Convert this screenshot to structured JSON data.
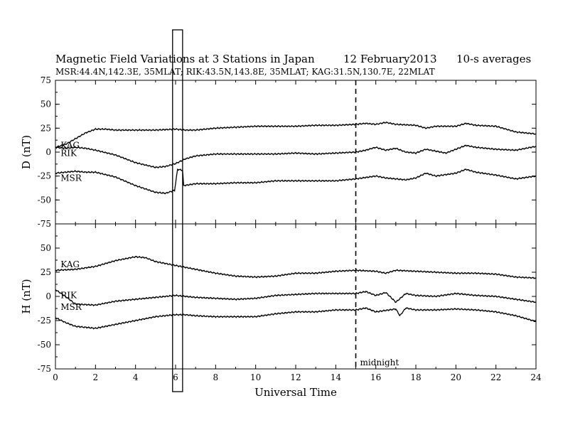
{
  "header": {
    "title": "Magnetic Field Variations at 3 Stations in Japan",
    "date": "12 February2013",
    "averaging": "10-s averages",
    "stations_line": "MSR:44.4N,142.3E, 35MLAT;  RIK:43.5N,143.8E, 35MLAT;  KAG:31.5N,130.7E, 22MLAT"
  },
  "chart_data": {
    "type": "line",
    "xlabel": "Universal Time",
    "xlim": [
      0,
      24
    ],
    "xticks": [
      0,
      2,
      4,
      6,
      8,
      10,
      12,
      14,
      16,
      18,
      20,
      22,
      24
    ],
    "midnight_line": {
      "x": 15,
      "label": "midnight"
    },
    "highlight_box": {
      "x_start": 5.85,
      "x_end": 6.35
    },
    "panels": [
      {
        "id": "D",
        "ylabel": "D (nT)",
        "ylim": [
          -75,
          75
        ],
        "yticks": [
          75,
          50,
          25,
          0,
          -25,
          -50,
          -75
        ],
        "series": [
          {
            "name": "KAG",
            "label_at": [
              0.15,
              4
            ],
            "points": [
              [
                0,
                5
              ],
              [
                0.5,
                8
              ],
              [
                1,
                14
              ],
              [
                1.5,
                20
              ],
              [
                2,
                24
              ],
              [
                2.5,
                24
              ],
              [
                3,
                23
              ],
              [
                4,
                23
              ],
              [
                5,
                23
              ],
              [
                6,
                24
              ],
              [
                6.5,
                23
              ],
              [
                7,
                23
              ],
              [
                8,
                25
              ],
              [
                9,
                26
              ],
              [
                10,
                27
              ],
              [
                11,
                27
              ],
              [
                12,
                27
              ],
              [
                13,
                28
              ],
              [
                14,
                28
              ],
              [
                15,
                29
              ],
              [
                15.5,
                30
              ],
              [
                16,
                29
              ],
              [
                16.5,
                31
              ],
              [
                17,
                29
              ],
              [
                18,
                28
              ],
              [
                18.5,
                25
              ],
              [
                19,
                27
              ],
              [
                20,
                27
              ],
              [
                20.5,
                30
              ],
              [
                21,
                28
              ],
              [
                22,
                27
              ],
              [
                23,
                21
              ],
              [
                24,
                19
              ]
            ]
          },
          {
            "name": "RIK",
            "label_at": [
              0.15,
              -4
            ],
            "points": [
              [
                0,
                5
              ],
              [
                0.5,
                4
              ],
              [
                1,
                5
              ],
              [
                1.5,
                4
              ],
              [
                2,
                2
              ],
              [
                3,
                -3
              ],
              [
                4,
                -11
              ],
              [
                5,
                -16
              ],
              [
                5.5,
                -15
              ],
              [
                6,
                -12
              ],
              [
                6.5,
                -7
              ],
              [
                7,
                -4
              ],
              [
                8,
                -2
              ],
              [
                9,
                -2
              ],
              [
                10,
                -2
              ],
              [
                11,
                -2
              ],
              [
                12,
                -1
              ],
              [
                13,
                -2
              ],
              [
                14,
                -1
              ],
              [
                15,
                0
              ],
              [
                15.5,
                2
              ],
              [
                16,
                5
              ],
              [
                16.5,
                2
              ],
              [
                17,
                4
              ],
              [
                17.5,
                0
              ],
              [
                18,
                -1
              ],
              [
                18.5,
                3
              ],
              [
                19,
                1
              ],
              [
                19.5,
                -1
              ],
              [
                20,
                3
              ],
              [
                20.5,
                7
              ],
              [
                21,
                5
              ],
              [
                22,
                3
              ],
              [
                23,
                2
              ],
              [
                24,
                6
              ]
            ]
          },
          {
            "name": "MSR",
            "label_at": [
              0.15,
              -30
            ],
            "points": [
              [
                0,
                -22
              ],
              [
                0.5,
                -21
              ],
              [
                1,
                -20
              ],
              [
                1.5,
                -21
              ],
              [
                2,
                -21
              ],
              [
                3,
                -26
              ],
              [
                4,
                -35
              ],
              [
                5,
                -42
              ],
              [
                5.5,
                -43
              ],
              [
                5.95,
                -40
              ],
              [
                6.1,
                -18
              ],
              [
                6.35,
                -19
              ],
              [
                6.4,
                -35
              ],
              [
                7,
                -33
              ],
              [
                8,
                -33
              ],
              [
                9,
                -32
              ],
              [
                10,
                -32
              ],
              [
                11,
                -30
              ],
              [
                12,
                -30
              ],
              [
                13,
                -30
              ],
              [
                14,
                -30
              ],
              [
                15,
                -28
              ],
              [
                16,
                -25
              ],
              [
                16.5,
                -27
              ],
              [
                17,
                -28
              ],
              [
                17.5,
                -29
              ],
              [
                18,
                -27
              ],
              [
                18.5,
                -22
              ],
              [
                19,
                -25
              ],
              [
                20,
                -22
              ],
              [
                20.5,
                -18
              ],
              [
                21,
                -21
              ],
              [
                22,
                -24
              ],
              [
                23,
                -28
              ],
              [
                24,
                -25
              ]
            ]
          }
        ]
      },
      {
        "id": "H",
        "ylabel": "H (nT)",
        "ylim": [
          -75,
          75
        ],
        "yticks": [
          75,
          50,
          25,
          0,
          -25,
          -50,
          -75
        ],
        "series": [
          {
            "name": "KAG",
            "label_at": [
              0.15,
              30
            ],
            "points": [
              [
                0,
                27
              ],
              [
                1,
                28
              ],
              [
                2,
                31
              ],
              [
                3,
                37
              ],
              [
                4,
                41
              ],
              [
                4.5,
                40
              ],
              [
                5,
                36
              ],
              [
                6,
                32
              ],
              [
                7,
                28
              ],
              [
                8,
                24
              ],
              [
                9,
                21
              ],
              [
                10,
                20
              ],
              [
                11,
                21
              ],
              [
                12,
                24
              ],
              [
                13,
                24
              ],
              [
                14,
                26
              ],
              [
                15,
                27
              ],
              [
                16,
                26
              ],
              [
                16.5,
                24
              ],
              [
                17,
                27
              ],
              [
                18,
                26
              ],
              [
                19,
                25
              ],
              [
                20,
                24
              ],
              [
                21,
                24
              ],
              [
                22,
                23
              ],
              [
                23,
                20
              ],
              [
                24,
                19
              ]
            ]
          },
          {
            "name": "RIK",
            "label_at": [
              0.15,
              -2
            ],
            "points": [
              [
                0,
                7
              ],
              [
                0.5,
                0
              ],
              [
                1,
                -8
              ],
              [
                2,
                -9
              ],
              [
                3,
                -5
              ],
              [
                4,
                -3
              ],
              [
                5,
                -1
              ],
              [
                6,
                1
              ],
              [
                7,
                -1
              ],
              [
                8,
                -2
              ],
              [
                9,
                -3
              ],
              [
                10,
                -2
              ],
              [
                11,
                1
              ],
              [
                12,
                2
              ],
              [
                13,
                3
              ],
              [
                14,
                3
              ],
              [
                15,
                3
              ],
              [
                15.5,
                5
              ],
              [
                16,
                1
              ],
              [
                16.5,
                4
              ],
              [
                17,
                -6
              ],
              [
                17.5,
                3
              ],
              [
                18,
                1
              ],
              [
                19,
                0
              ],
              [
                20,
                3
              ],
              [
                21,
                1
              ],
              [
                22,
                0
              ],
              [
                23,
                -3
              ],
              [
                24,
                -6
              ]
            ]
          },
          {
            "name": "MSR",
            "label_at": [
              0.15,
              -14
            ],
            "points": [
              [
                0,
                -22
              ],
              [
                0.5,
                -27
              ],
              [
                1,
                -31
              ],
              [
                2,
                -33
              ],
              [
                3,
                -29
              ],
              [
                4,
                -25
              ],
              [
                5,
                -21
              ],
              [
                5.95,
                -19
              ],
              [
                6.05,
                -19
              ],
              [
                6.35,
                -19
              ],
              [
                6.5,
                -19
              ],
              [
                7,
                -20
              ],
              [
                8,
                -21
              ],
              [
                9,
                -21
              ],
              [
                10,
                -21
              ],
              [
                11,
                -18
              ],
              [
                12,
                -16
              ],
              [
                13,
                -16
              ],
              [
                14,
                -14
              ],
              [
                15,
                -14
              ],
              [
                15.5,
                -12
              ],
              [
                16,
                -16
              ],
              [
                17,
                -13
              ],
              [
                17.2,
                -20
              ],
              [
                17.5,
                -12
              ],
              [
                18,
                -14
              ],
              [
                19,
                -14
              ],
              [
                20,
                -13
              ],
              [
                21,
                -14
              ],
              [
                22,
                -16
              ],
              [
                23,
                -20
              ],
              [
                24,
                -26
              ]
            ]
          }
        ]
      }
    ]
  }
}
